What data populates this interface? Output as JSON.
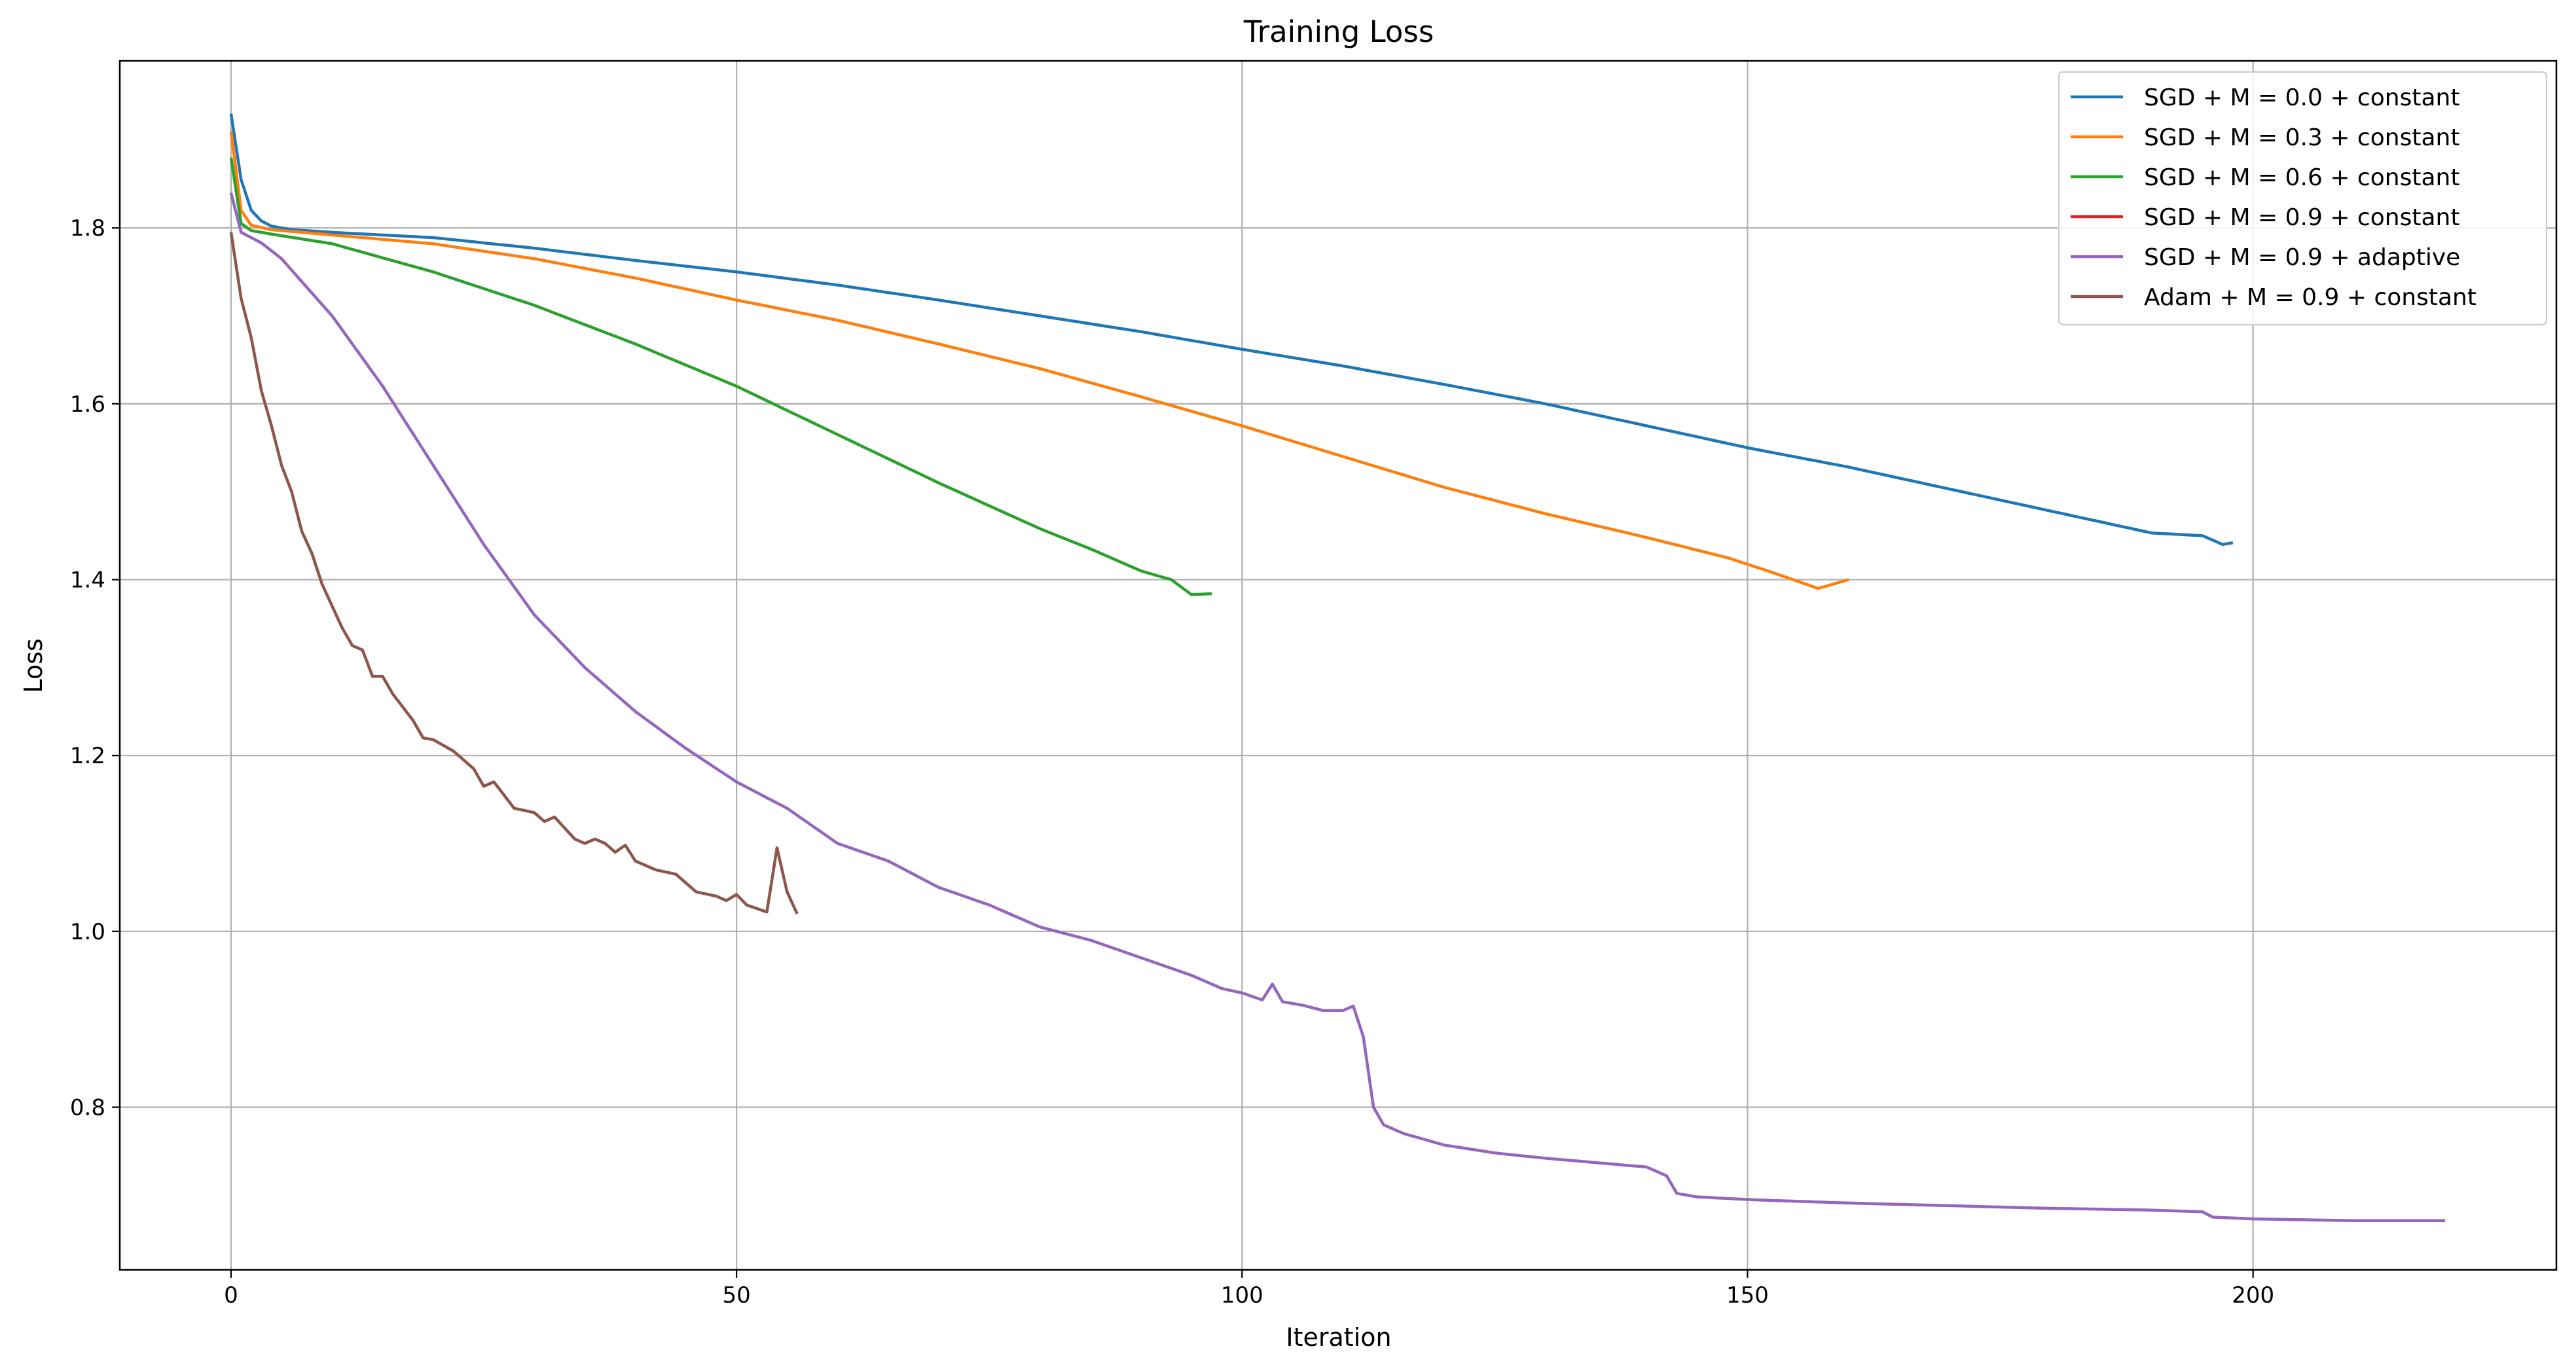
{
  "chart_data": {
    "type": "line",
    "title": "Training Loss",
    "xlabel": "Iteration",
    "ylabel": "Loss",
    "xlim": [
      -11,
      230
    ],
    "ylim": [
      0.615,
      1.99
    ],
    "xticks": [
      0,
      50,
      100,
      150,
      200
    ],
    "yticks": [
      0.8,
      1.0,
      1.2,
      1.4,
      1.6,
      1.8
    ],
    "ytick_labels": [
      "0.8",
      "1.0",
      "1.2",
      "1.4",
      "1.6",
      "1.8"
    ],
    "grid": true,
    "legend_position": "top-right",
    "series": [
      {
        "name": "SGD + M = 0.0 + constant",
        "color": "#1f77b4",
        "keypoints": [
          [
            0,
            1.93
          ],
          [
            1,
            1.855
          ],
          [
            2,
            1.82
          ],
          [
            3,
            1.808
          ],
          [
            4,
            1.802
          ],
          [
            6,
            1.798
          ],
          [
            10,
            1.795
          ],
          [
            20,
            1.789
          ],
          [
            30,
            1.777
          ],
          [
            40,
            1.763
          ],
          [
            50,
            1.75
          ],
          [
            60,
            1.735
          ],
          [
            70,
            1.718
          ],
          [
            80,
            1.7
          ],
          [
            90,
            1.682
          ],
          [
            100,
            1.662
          ],
          [
            110,
            1.643
          ],
          [
            120,
            1.622
          ],
          [
            130,
            1.6
          ],
          [
            140,
            1.575
          ],
          [
            150,
            1.55
          ],
          [
            160,
            1.528
          ],
          [
            170,
            1.503
          ],
          [
            180,
            1.478
          ],
          [
            190,
            1.453
          ],
          [
            195,
            1.45
          ],
          [
            197,
            1.44
          ],
          [
            198,
            1.442
          ]
        ]
      },
      {
        "name": "SGD + M = 0.3 + constant",
        "color": "#ff7f0e",
        "keypoints": [
          [
            0,
            1.91
          ],
          [
            1,
            1.82
          ],
          [
            2,
            1.803
          ],
          [
            4,
            1.798
          ],
          [
            10,
            1.792
          ],
          [
            20,
            1.782
          ],
          [
            30,
            1.765
          ],
          [
            40,
            1.743
          ],
          [
            50,
            1.718
          ],
          [
            60,
            1.695
          ],
          [
            70,
            1.668
          ],
          [
            80,
            1.64
          ],
          [
            90,
            1.608
          ],
          [
            100,
            1.575
          ],
          [
            110,
            1.54
          ],
          [
            120,
            1.505
          ],
          [
            130,
            1.475
          ],
          [
            140,
            1.448
          ],
          [
            148,
            1.425
          ],
          [
            152,
            1.41
          ],
          [
            155,
            1.398
          ],
          [
            157,
            1.39
          ],
          [
            160,
            1.4
          ]
        ]
      },
      {
        "name": "SGD + M = 0.6 + constant",
        "color": "#2ca02c",
        "keypoints": [
          [
            0,
            1.88
          ],
          [
            1,
            1.805
          ],
          [
            2,
            1.797
          ],
          [
            4,
            1.793
          ],
          [
            10,
            1.782
          ],
          [
            20,
            1.75
          ],
          [
            30,
            1.712
          ],
          [
            40,
            1.668
          ],
          [
            50,
            1.62
          ],
          [
            60,
            1.565
          ],
          [
            70,
            1.51
          ],
          [
            80,
            1.458
          ],
          [
            85,
            1.435
          ],
          [
            90,
            1.41
          ],
          [
            93,
            1.4
          ],
          [
            95,
            1.383
          ],
          [
            97,
            1.384
          ]
        ]
      },
      {
        "name": "SGD + M = 0.9 + constant",
        "color": "#d62728",
        "keypoints": []
      },
      {
        "name": "SGD + M = 0.9 + adaptive",
        "color": "#9467bd",
        "keypoints": [
          [
            0,
            1.84
          ],
          [
            1,
            1.795
          ],
          [
            3,
            1.783
          ],
          [
            5,
            1.765
          ],
          [
            10,
            1.7
          ],
          [
            15,
            1.62
          ],
          [
            20,
            1.53
          ],
          [
            25,
            1.44
          ],
          [
            30,
            1.36
          ],
          [
            35,
            1.3
          ],
          [
            40,
            1.25
          ],
          [
            45,
            1.208
          ],
          [
            50,
            1.17
          ],
          [
            55,
            1.14
          ],
          [
            60,
            1.1
          ],
          [
            65,
            1.08
          ],
          [
            70,
            1.05
          ],
          [
            75,
            1.03
          ],
          [
            80,
            1.005
          ],
          [
            85,
            0.99
          ],
          [
            90,
            0.97
          ],
          [
            95,
            0.95
          ],
          [
            98,
            0.935
          ],
          [
            100,
            0.93
          ],
          [
            102,
            0.922
          ],
          [
            103,
            0.94
          ],
          [
            104,
            0.92
          ],
          [
            106,
            0.916
          ],
          [
            108,
            0.91
          ],
          [
            110,
            0.91
          ],
          [
            111,
            0.915
          ],
          [
            112,
            0.88
          ],
          [
            113,
            0.8
          ],
          [
            114,
            0.78
          ],
          [
            116,
            0.77
          ],
          [
            120,
            0.757
          ],
          [
            125,
            0.748
          ],
          [
            130,
            0.742
          ],
          [
            135,
            0.737
          ],
          [
            140,
            0.732
          ],
          [
            142,
            0.722
          ],
          [
            143,
            0.702
          ],
          [
            145,
            0.698
          ],
          [
            150,
            0.695
          ],
          [
            160,
            0.691
          ],
          [
            170,
            0.688
          ],
          [
            180,
            0.685
          ],
          [
            190,
            0.683
          ],
          [
            195,
            0.681
          ],
          [
            196,
            0.675
          ],
          [
            200,
            0.673
          ],
          [
            210,
            0.671
          ],
          [
            219,
            0.671
          ]
        ]
      },
      {
        "name": "Adam + M = 0.9 + constant",
        "color": "#8c564b",
        "keypoints": [
          [
            0,
            1.795
          ],
          [
            1,
            1.72
          ],
          [
            2,
            1.675
          ],
          [
            3,
            1.615
          ],
          [
            4,
            1.575
          ],
          [
            5,
            1.53
          ],
          [
            6,
            1.5
          ],
          [
            7,
            1.455
          ],
          [
            8,
            1.43
          ],
          [
            9,
            1.395
          ],
          [
            10,
            1.37
          ],
          [
            11,
            1.345
          ],
          [
            12,
            1.325
          ],
          [
            13,
            1.32
          ],
          [
            14,
            1.29
          ],
          [
            15,
            1.29
          ],
          [
            16,
            1.27
          ],
          [
            17,
            1.255
          ],
          [
            18,
            1.24
          ],
          [
            19,
            1.22
          ],
          [
            20,
            1.218
          ],
          [
            22,
            1.205
          ],
          [
            24,
            1.185
          ],
          [
            25,
            1.165
          ],
          [
            26,
            1.17
          ],
          [
            28,
            1.14
          ],
          [
            30,
            1.135
          ],
          [
            31,
            1.125
          ],
          [
            32,
            1.13
          ],
          [
            34,
            1.105
          ],
          [
            35,
            1.1
          ],
          [
            36,
            1.105
          ],
          [
            37,
            1.1
          ],
          [
            38,
            1.09
          ],
          [
            39,
            1.098
          ],
          [
            40,
            1.08
          ],
          [
            42,
            1.07
          ],
          [
            44,
            1.065
          ],
          [
            46,
            1.045
          ],
          [
            48,
            1.04
          ],
          [
            49,
            1.035
          ],
          [
            50,
            1.042
          ],
          [
            51,
            1.03
          ],
          [
            53,
            1.022
          ],
          [
            54,
            1.095
          ],
          [
            55,
            1.045
          ],
          [
            56,
            1.02
          ]
        ]
      }
    ]
  }
}
